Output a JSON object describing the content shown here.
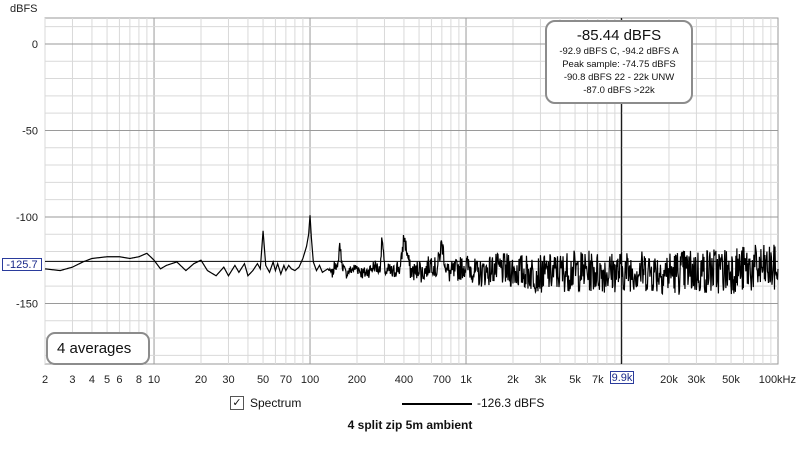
{
  "chart_data": {
    "type": "line",
    "title": "4 split zip 5m ambient",
    "ylabel": "dBFS",
    "x_scale": "log",
    "xlim": [
      2,
      100000
    ],
    "ylim": [
      -185,
      15
    ],
    "x_ticks": [
      {
        "value": 2,
        "label": "2"
      },
      {
        "value": 3,
        "label": "3"
      },
      {
        "value": 4,
        "label": "4"
      },
      {
        "value": 5,
        "label": "5"
      },
      {
        "value": 6,
        "label": "6"
      },
      {
        "value": 8,
        "label": "8"
      },
      {
        "value": 10,
        "label": "10"
      },
      {
        "value": 20,
        "label": "20"
      },
      {
        "value": 30,
        "label": "30"
      },
      {
        "value": 50,
        "label": "50"
      },
      {
        "value": 70,
        "label": "70"
      },
      {
        "value": 100,
        "label": "100"
      },
      {
        "value": 200,
        "label": "200"
      },
      {
        "value": 400,
        "label": "400"
      },
      {
        "value": 700,
        "label": "700"
      },
      {
        "value": 1000,
        "label": "1k"
      },
      {
        "value": 2000,
        "label": "2k"
      },
      {
        "value": 3000,
        "label": "3k"
      },
      {
        "value": 5000,
        "label": "5k"
      },
      {
        "value": 7000,
        "label": "7k"
      },
      {
        "value": 20000,
        "label": "20k"
      },
      {
        "value": 30000,
        "label": "30k"
      },
      {
        "value": 50000,
        "label": "50k"
      },
      {
        "value": 100000,
        "label": "100kHz"
      }
    ],
    "y_ticks": [
      {
        "value": 0,
        "label": "0"
      },
      {
        "value": -50,
        "label": "-50"
      },
      {
        "value": -100,
        "label": "-100"
      },
      {
        "value": -150,
        "label": "-150"
      }
    ],
    "grid": true,
    "series": [
      {
        "name": "Spectrum",
        "color": "#000000",
        "x": [
          2,
          2.5,
          3,
          3.5,
          4,
          5,
          6,
          7,
          8,
          9,
          10,
          11,
          12,
          14,
          16,
          18,
          20,
          22,
          25,
          28,
          30,
          33,
          35,
          38,
          40,
          43,
          46,
          48,
          50,
          52,
          55,
          58,
          60,
          62,
          65,
          68,
          70,
          73,
          76,
          80,
          85,
          90,
          95,
          98,
          100,
          102,
          105,
          110,
          115,
          120,
          130,
          140,
          145,
          150,
          155,
          160,
          170,
          180,
          190,
          200,
          220,
          240,
          260,
          280,
          290,
          300,
          310,
          320,
          340,
          360,
          380,
          400,
          440,
          480,
          500,
          520,
          560,
          600,
          650,
          700,
          750,
          800,
          900,
          1000,
          1200,
          1500,
          2000,
          3000,
          5000,
          8000,
          12000,
          20000,
          40000,
          70000,
          100000
        ],
        "y": [
          -130,
          -131,
          -129,
          -126,
          -124,
          -123,
          -123,
          -124,
          -123,
          -121,
          -125,
          -130,
          -128,
          -126,
          -131,
          -127,
          -125,
          -131,
          -134,
          -129,
          -134,
          -128,
          -132,
          -127,
          -134,
          -131,
          -127,
          -130,
          -108,
          -128,
          -132,
          -126,
          -131,
          -127,
          -133,
          -128,
          -131,
          -128,
          -130,
          -131,
          -129,
          -124,
          -117,
          -110,
          -99,
          -112,
          -126,
          -131,
          -128,
          -132,
          -130,
          -133,
          -126,
          -131,
          -115,
          -127,
          -133,
          -131,
          -130,
          -129,
          -133,
          -131,
          -128,
          -131,
          -112,
          -130,
          -132,
          -131,
          -133,
          -129,
          -130,
          -111,
          -131,
          -132,
          -128,
          -133,
          -130,
          -126,
          -131,
          -115,
          -131,
          -133,
          -130,
          -128,
          -133,
          -130,
          -131,
          -133,
          -131,
          -132,
          -131,
          -132,
          -131,
          -130,
          -130
        ],
        "noise": [
          0,
          0,
          0,
          0,
          0,
          0,
          0,
          0,
          0,
          0,
          0,
          0,
          0,
          0,
          0,
          0,
          0,
          0,
          0,
          0,
          0,
          0,
          0,
          0,
          0,
          0,
          0,
          0,
          0,
          0,
          0,
          0,
          0,
          0,
          0,
          0,
          0,
          0,
          0,
          0,
          0,
          0,
          0,
          0,
          0,
          0,
          0,
          0,
          0,
          0,
          0,
          3,
          3,
          3,
          3,
          3,
          3,
          3,
          3,
          4,
          4,
          4,
          4,
          4,
          4,
          4,
          4,
          5,
          5,
          5,
          5,
          5,
          5,
          6,
          6,
          6,
          6,
          6,
          6,
          6,
          6,
          7,
          7,
          7,
          8,
          9,
          10,
          11,
          12,
          12,
          12,
          13,
          14,
          14,
          14
        ]
      }
    ],
    "reference_line_y": -125.7,
    "cursor_x": 9900
  },
  "axis": {
    "y_unit": "dBFS"
  },
  "markers": {
    "y_readout": "-125.7",
    "x_readout": "9.9k"
  },
  "info_box": {
    "main": "-85.44 dBFS",
    "line1": "-92.9 dBFS C, -94.2 dBFS A",
    "line2": "Peak sample: -74.75 dBFS",
    "line3": "-90.8 dBFS 22 - 22k UNW",
    "line4": "-87.0 dBFS >22k"
  },
  "averages": {
    "label": "4 averages"
  },
  "legend": {
    "checked": "✓",
    "name": "Spectrum",
    "value": "-126.3 dBFS"
  },
  "colors": {
    "grid_major": "#9a9a9a",
    "grid_minor": "#d9d9d9",
    "trace": "#000000",
    "marker_border": "#2a3b9c"
  }
}
